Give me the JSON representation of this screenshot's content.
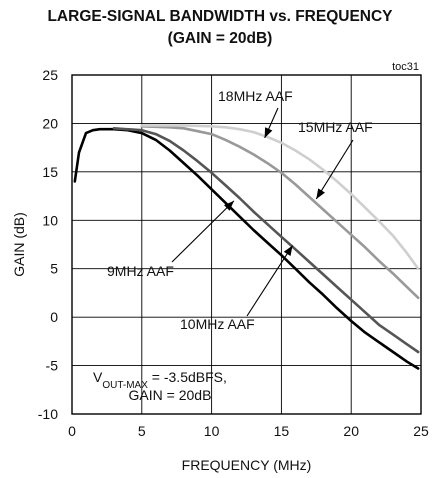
{
  "chart_data": {
    "type": "line",
    "title": "LARGE-SIGNAL BANDWIDTH vs. FREQUENCY",
    "subtitle": "(GAIN = 20dB)",
    "figure_id": "toc31",
    "xlabel": "FREQUENCY (MHz)",
    "ylabel": "GAIN (dB)",
    "xlim": [
      0,
      25
    ],
    "ylim": [
      -10,
      25
    ],
    "xticks": [
      0,
      5,
      10,
      15,
      20,
      25
    ],
    "yticks": [
      -10,
      -5,
      0,
      5,
      10,
      15,
      20,
      25
    ],
    "grid": true,
    "series": [
      {
        "name": "9MHz AAF",
        "color": "#000000",
        "x": [
          0.2,
          0.5,
          1,
          1.5,
          2,
          3,
          4,
          5,
          6,
          7,
          8,
          9,
          10,
          11,
          12,
          13,
          14,
          15,
          16,
          17,
          18,
          19,
          20,
          21,
          22,
          23,
          24,
          24.8
        ],
        "y": [
          14,
          17,
          19,
          19.3,
          19.4,
          19.4,
          19.3,
          19.0,
          18.3,
          17.2,
          15.9,
          14.6,
          13.2,
          11.8,
          10.4,
          9.0,
          7.7,
          6.4,
          5.0,
          3.6,
          2.3,
          0.9,
          -0.4,
          -1.6,
          -2.6,
          -3.6,
          -4.6,
          -5.3
        ]
      },
      {
        "name": "10MHz AAF",
        "color": "#555555",
        "x": [
          3,
          5,
          6,
          7,
          8,
          9,
          10,
          11,
          12,
          13,
          14,
          15,
          16,
          17,
          18,
          19,
          20,
          21,
          22,
          23,
          24,
          24.8
        ],
        "y": [
          19.5,
          19.3,
          18.9,
          18.2,
          17.2,
          16.1,
          14.9,
          13.6,
          12.3,
          10.9,
          9.6,
          8.3,
          7.0,
          5.7,
          4.4,
          3.1,
          1.8,
          0.5,
          -0.8,
          -1.8,
          -2.8,
          -3.6
        ]
      },
      {
        "name": "15MHz AAF",
        "color": "#999999",
        "x": [
          5,
          7,
          8,
          9,
          10,
          11,
          12,
          13,
          14,
          15,
          16,
          17,
          18,
          19,
          20,
          21,
          22,
          23,
          24,
          24.8
        ],
        "y": [
          19.7,
          19.6,
          19.5,
          19.2,
          18.9,
          18.3,
          17.6,
          16.8,
          15.9,
          14.9,
          13.7,
          12.4,
          11.1,
          9.8,
          8.5,
          7.2,
          5.8,
          4.5,
          3.1,
          2.0
        ]
      },
      {
        "name": "18MHz AAF",
        "color": "#cfcfcf",
        "x": [
          5,
          8,
          10,
          11,
          12,
          13,
          14,
          15,
          16,
          17,
          18,
          19,
          20,
          21,
          22,
          23,
          24,
          24.8
        ],
        "y": [
          19.8,
          19.8,
          19.7,
          19.6,
          19.4,
          19.1,
          18.6,
          18.0,
          17.2,
          16.3,
          15.2,
          14.0,
          12.7,
          11.3,
          9.9,
          8.4,
          6.6,
          5.0
        ]
      }
    ],
    "annotations": [
      {
        "label": "18MHz AAF",
        "arrow_to": [
          13.8,
          18.5
        ]
      },
      {
        "label": "15MHz AAF",
        "arrow_to": [
          17.5,
          12.2
        ]
      },
      {
        "label": "9MHz AAF",
        "arrow_to": [
          11.6,
          12.0
        ]
      },
      {
        "label": "10MHz AAF",
        "arrow_to": [
          15.8,
          7.4
        ]
      }
    ],
    "condition_note": {
      "vout_prefix": "V",
      "vout_sub": "OUT-MAX",
      "vout_value": " = -3.5dBFS,",
      "gain_line": "GAIN = 20dB"
    }
  }
}
